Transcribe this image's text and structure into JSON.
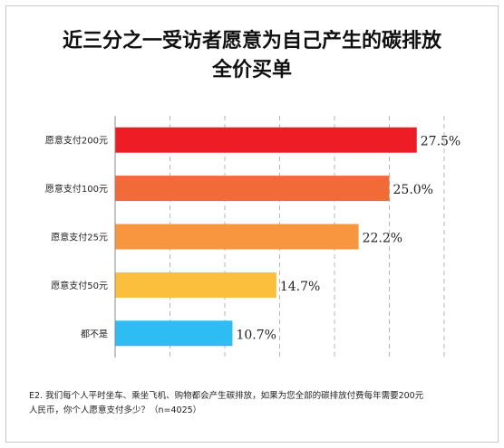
{
  "chart_data": {
    "type": "bar",
    "orientation": "horizontal",
    "title_lines": [
      "近三分之一受访者愿意为自己产生的碳排放",
      "全价买单"
    ],
    "categories": [
      "愿意支付200元",
      "愿意支付100元",
      "愿意支付25元",
      "愿意支付50元",
      "都不是"
    ],
    "values": [
      27.5,
      25.0,
      22.2,
      14.7,
      10.7
    ],
    "value_labels": [
      "27.5%",
      "25.0%",
      "22.2%",
      "14.7%",
      "10.7%"
    ],
    "colors": [
      "#ee1c25",
      "#f26a38",
      "#f7963f",
      "#fbbe3d",
      "#2ebdf2"
    ],
    "xlim": [
      0,
      30
    ],
    "grid": "vertical-dashed",
    "legend": "none"
  },
  "footnote": {
    "line1": "E2. 我们每个人平时坐车、乘坐飞机、购物都会产生碳排放，如果为您全部的碳排放付费每年需要200元",
    "line2": "人民币，你个人愿意支付多少？（n=4025）"
  }
}
